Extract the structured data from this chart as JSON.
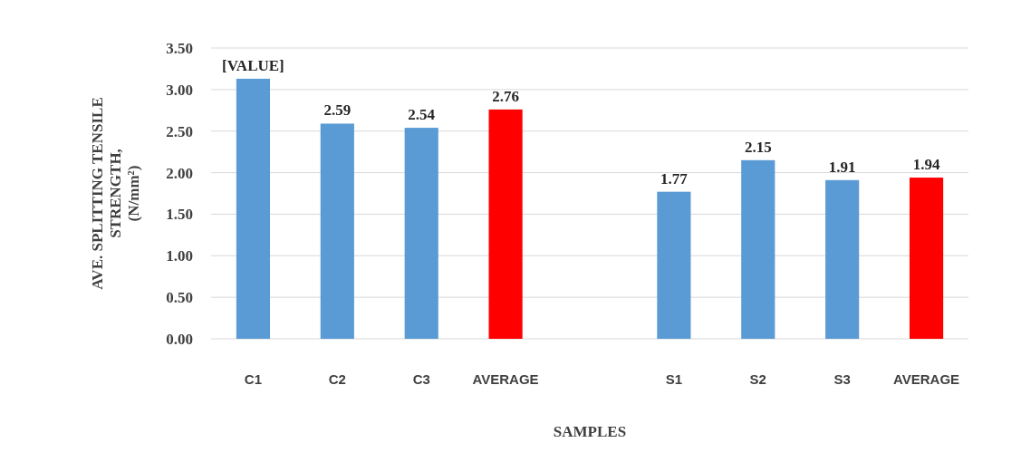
{
  "chart_data": {
    "type": "bar",
    "xlabel": "SAMPLES",
    "ylabel": "AVE. SPLITTING TENSILE\nSTRENGTH,\n(N/mm²)",
    "categories": [
      "C1",
      "C2",
      "C3",
      "AVERAGE",
      null,
      "S1",
      "S2",
      "S3",
      "AVERAGE"
    ],
    "values": [
      3.13,
      2.59,
      2.54,
      2.76,
      null,
      1.77,
      2.15,
      1.91,
      1.94
    ],
    "value_labels": [
      "[VALUE]",
      "2.59",
      "2.54",
      "2.76",
      null,
      "1.77",
      "2.15",
      "1.91",
      "1.94"
    ],
    "colors": [
      "#5b9bd5",
      "#5b9bd5",
      "#5b9bd5",
      "#ff0000",
      null,
      "#5b9bd5",
      "#5b9bd5",
      "#5b9bd5",
      "#ff0000"
    ],
    "ylim": [
      0,
      3.5
    ],
    "yticks": [
      "0.00",
      "0.50",
      "1.00",
      "1.50",
      "2.00",
      "2.50",
      "3.00",
      "3.50"
    ],
    "grid": "y"
  }
}
